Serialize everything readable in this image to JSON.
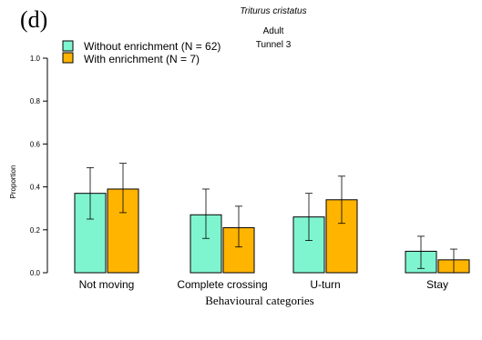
{
  "chart_data": {
    "type": "bar",
    "panel_label": "(d)",
    "title_lines": [
      "Triturus cristatus",
      "Adult",
      "Tunnel 3"
    ],
    "xlabel": "Behavioural categories",
    "ylabel": "Proportion",
    "ylim": [
      0,
      1
    ],
    "yticks": [
      "0.0",
      "0.2",
      "0.4",
      "0.6",
      "0.8",
      "1.0"
    ],
    "categories": [
      "Not moving",
      "Complete crossing",
      "U-turn",
      "Stay"
    ],
    "legend_position": "top-left",
    "series": [
      {
        "name": "Without enrichment (N = 62)",
        "color": "#7ff5cf",
        "values": [
          0.37,
          0.27,
          0.26,
          0.1
        ],
        "lower": [
          0.25,
          0.16,
          0.15,
          0.02
        ],
        "upper": [
          0.49,
          0.39,
          0.37,
          0.17
        ]
      },
      {
        "name": "With enrichment (N = 7)",
        "color": "#ffb400",
        "values": [
          0.39,
          0.21,
          0.34,
          0.06
        ],
        "lower": [
          0.28,
          0.12,
          0.23,
          0.0
        ],
        "upper": [
          0.51,
          0.31,
          0.45,
          0.11
        ]
      }
    ]
  }
}
